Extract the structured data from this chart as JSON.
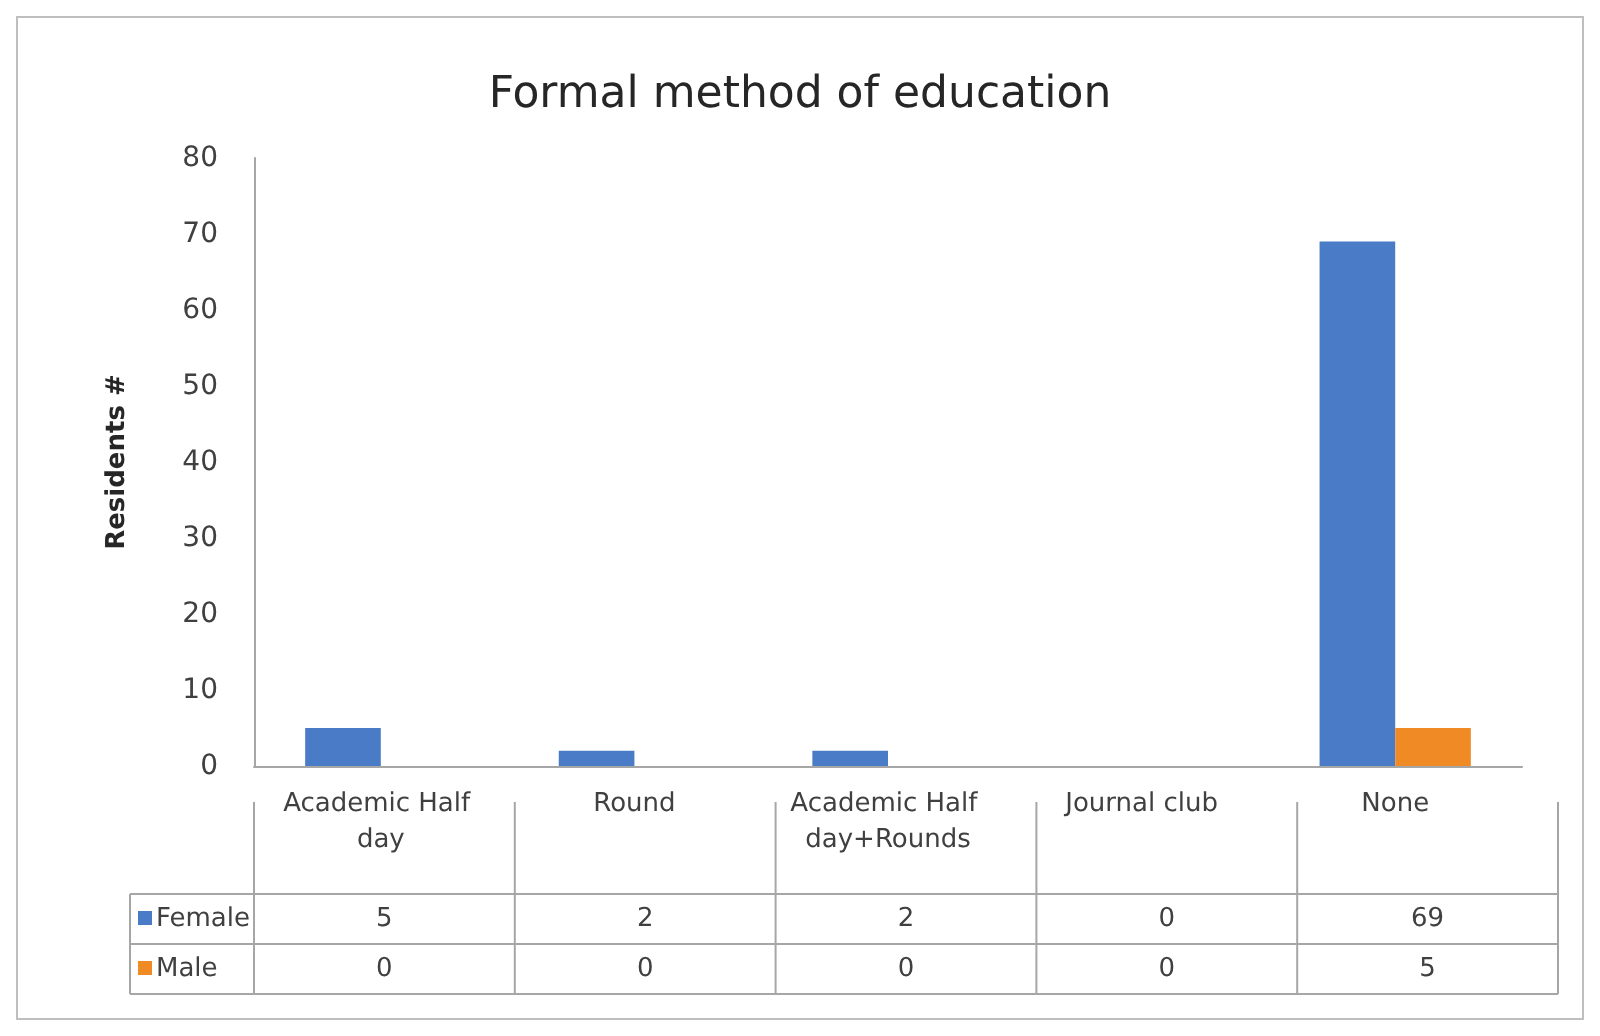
{
  "chart_data": {
    "type": "bar",
    "title": "Formal method of education",
    "ylabel": "Residents #",
    "categories": [
      "Academic Half day",
      "Round",
      "Academic Half day+Rounds",
      "Journal club",
      "None"
    ],
    "series": [
      {
        "name": "Female",
        "color": "#4a7bc6",
        "values": [
          5,
          2,
          2,
          0,
          69
        ]
      },
      {
        "name": "Male",
        "color": "#f08a24",
        "values": [
          0,
          0,
          0,
          0,
          5
        ]
      }
    ],
    "ylim": [
      0,
      80
    ],
    "yticks": [
      0,
      10,
      20,
      30,
      40,
      50,
      60,
      70,
      80
    ],
    "grid": false,
    "legend": "bottom",
    "data_labels": true
  }
}
